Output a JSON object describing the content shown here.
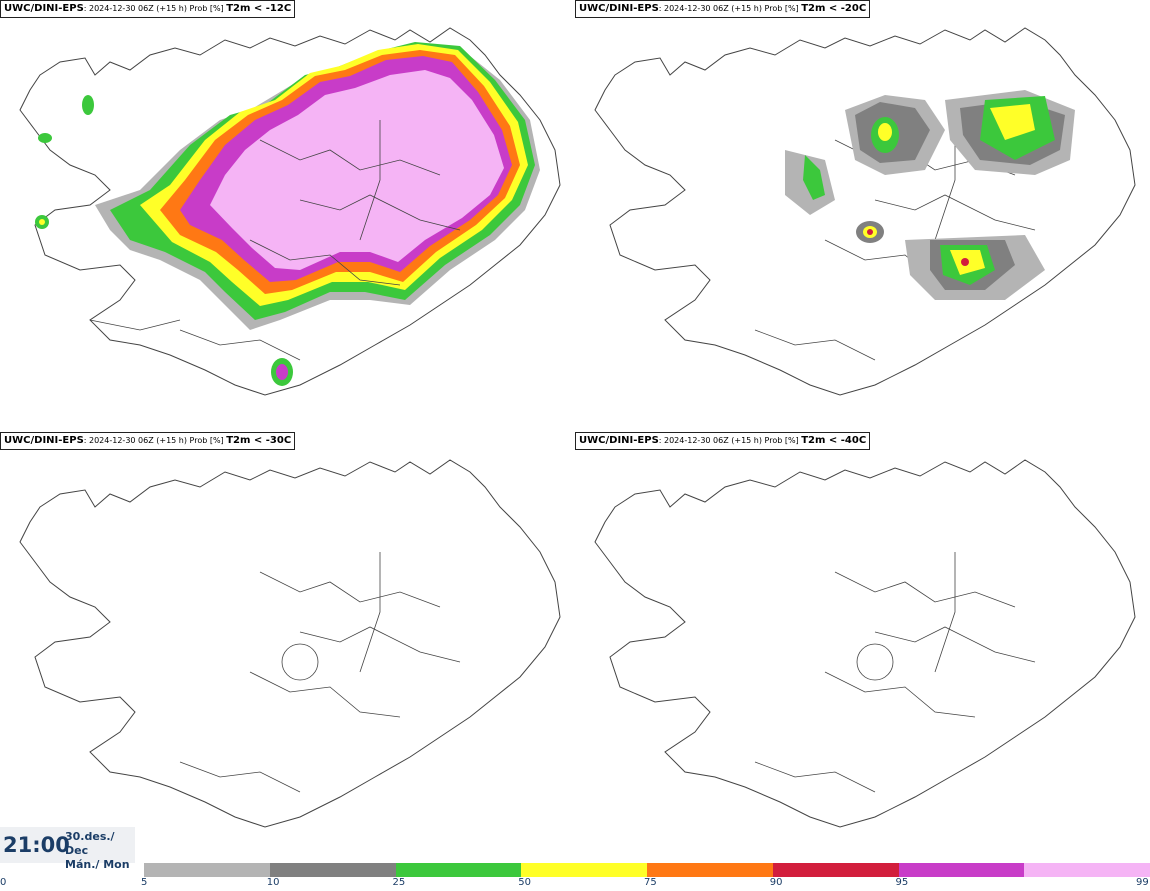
{
  "panels": [
    {
      "model": "UWC/DINI-EPS",
      "meta": ": 2024-12-30 06Z (+15 h) Prob [%]",
      "threshold": "T2m < -12C"
    },
    {
      "model": "UWC/DINI-EPS",
      "meta": ": 2024-12-30 06Z (+15 h) Prob [%]",
      "threshold": "T2m < -20C"
    },
    {
      "model": "UWC/DINI-EPS",
      "meta": ": 2024-12-30 06Z (+15 h) Prob [%]",
      "threshold": "T2m < -30C"
    },
    {
      "model": "UWC/DINI-EPS",
      "meta": ": 2024-12-30 06Z (+15 h) Prob [%]",
      "threshold": "T2m < -40C"
    }
  ],
  "valid_time": {
    "time": "21:00",
    "date_line1": "30.des./ Dec",
    "date_line2": "Mán./ Mon"
  },
  "legend": {
    "ticks": [
      "0",
      "5",
      "10",
      "25",
      "50",
      "75",
      "90",
      "95",
      "99"
    ],
    "colors": [
      "#b4b4b4",
      "#808080",
      "#3cc83c",
      "#ffff28",
      "#ff7814",
      "#d21e3c",
      "#c83cc8",
      "#f5b4f5"
    ]
  },
  "map_colors": {
    "gray_light": "#b4b4b4",
    "gray_dark": "#808080",
    "green": "#3cc83c",
    "yellow": "#ffff28",
    "orange": "#ff7814",
    "red": "#d21e3c",
    "magenta": "#c83cc8",
    "pink": "#f5b4f5",
    "outline": "#444444"
  }
}
